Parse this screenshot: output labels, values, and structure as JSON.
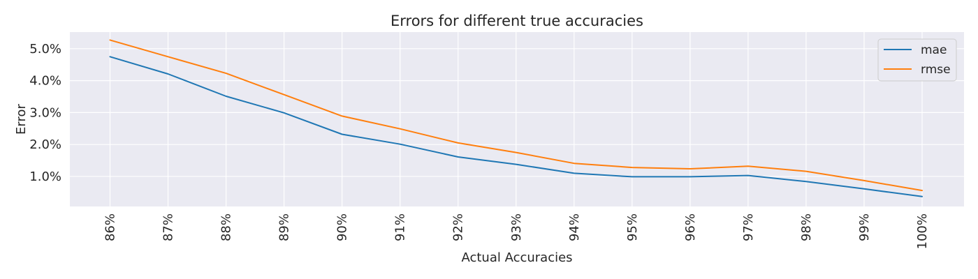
{
  "chart_data": {
    "type": "line",
    "title": "Errors for different true accuracies",
    "xlabel": "Actual Accuracies",
    "ylabel": "Error",
    "x": [
      "86%",
      "87%",
      "88%",
      "89%",
      "90%",
      "91%",
      "92%",
      "93%",
      "94%",
      "95%",
      "96%",
      "97%",
      "98%",
      "99%",
      "100%"
    ],
    "yticks": [
      0.01,
      0.02,
      0.03,
      0.04,
      0.05
    ],
    "ytick_labels": [
      "1.0%",
      "2.0%",
      "3.0%",
      "4.0%",
      "5.0%"
    ],
    "ylim": [
      0.0006,
      0.0552
    ],
    "grid": true,
    "legend": "top-right",
    "series": [
      {
        "name": "mae",
        "color": "#1f77b4",
        "values": [
          0.0475,
          0.0421,
          0.0351,
          0.0299,
          0.0232,
          0.0201,
          0.0161,
          0.0138,
          0.011,
          0.0099,
          0.0099,
          0.0103,
          0.0084,
          0.0061,
          0.0037
        ]
      },
      {
        "name": "rmse",
        "color": "#ff7f0e",
        "values": [
          0.0527,
          0.0475,
          0.0423,
          0.0356,
          0.0289,
          0.0249,
          0.0205,
          0.0175,
          0.0141,
          0.0128,
          0.0124,
          0.0132,
          0.0116,
          0.0087,
          0.0056
        ]
      }
    ]
  }
}
